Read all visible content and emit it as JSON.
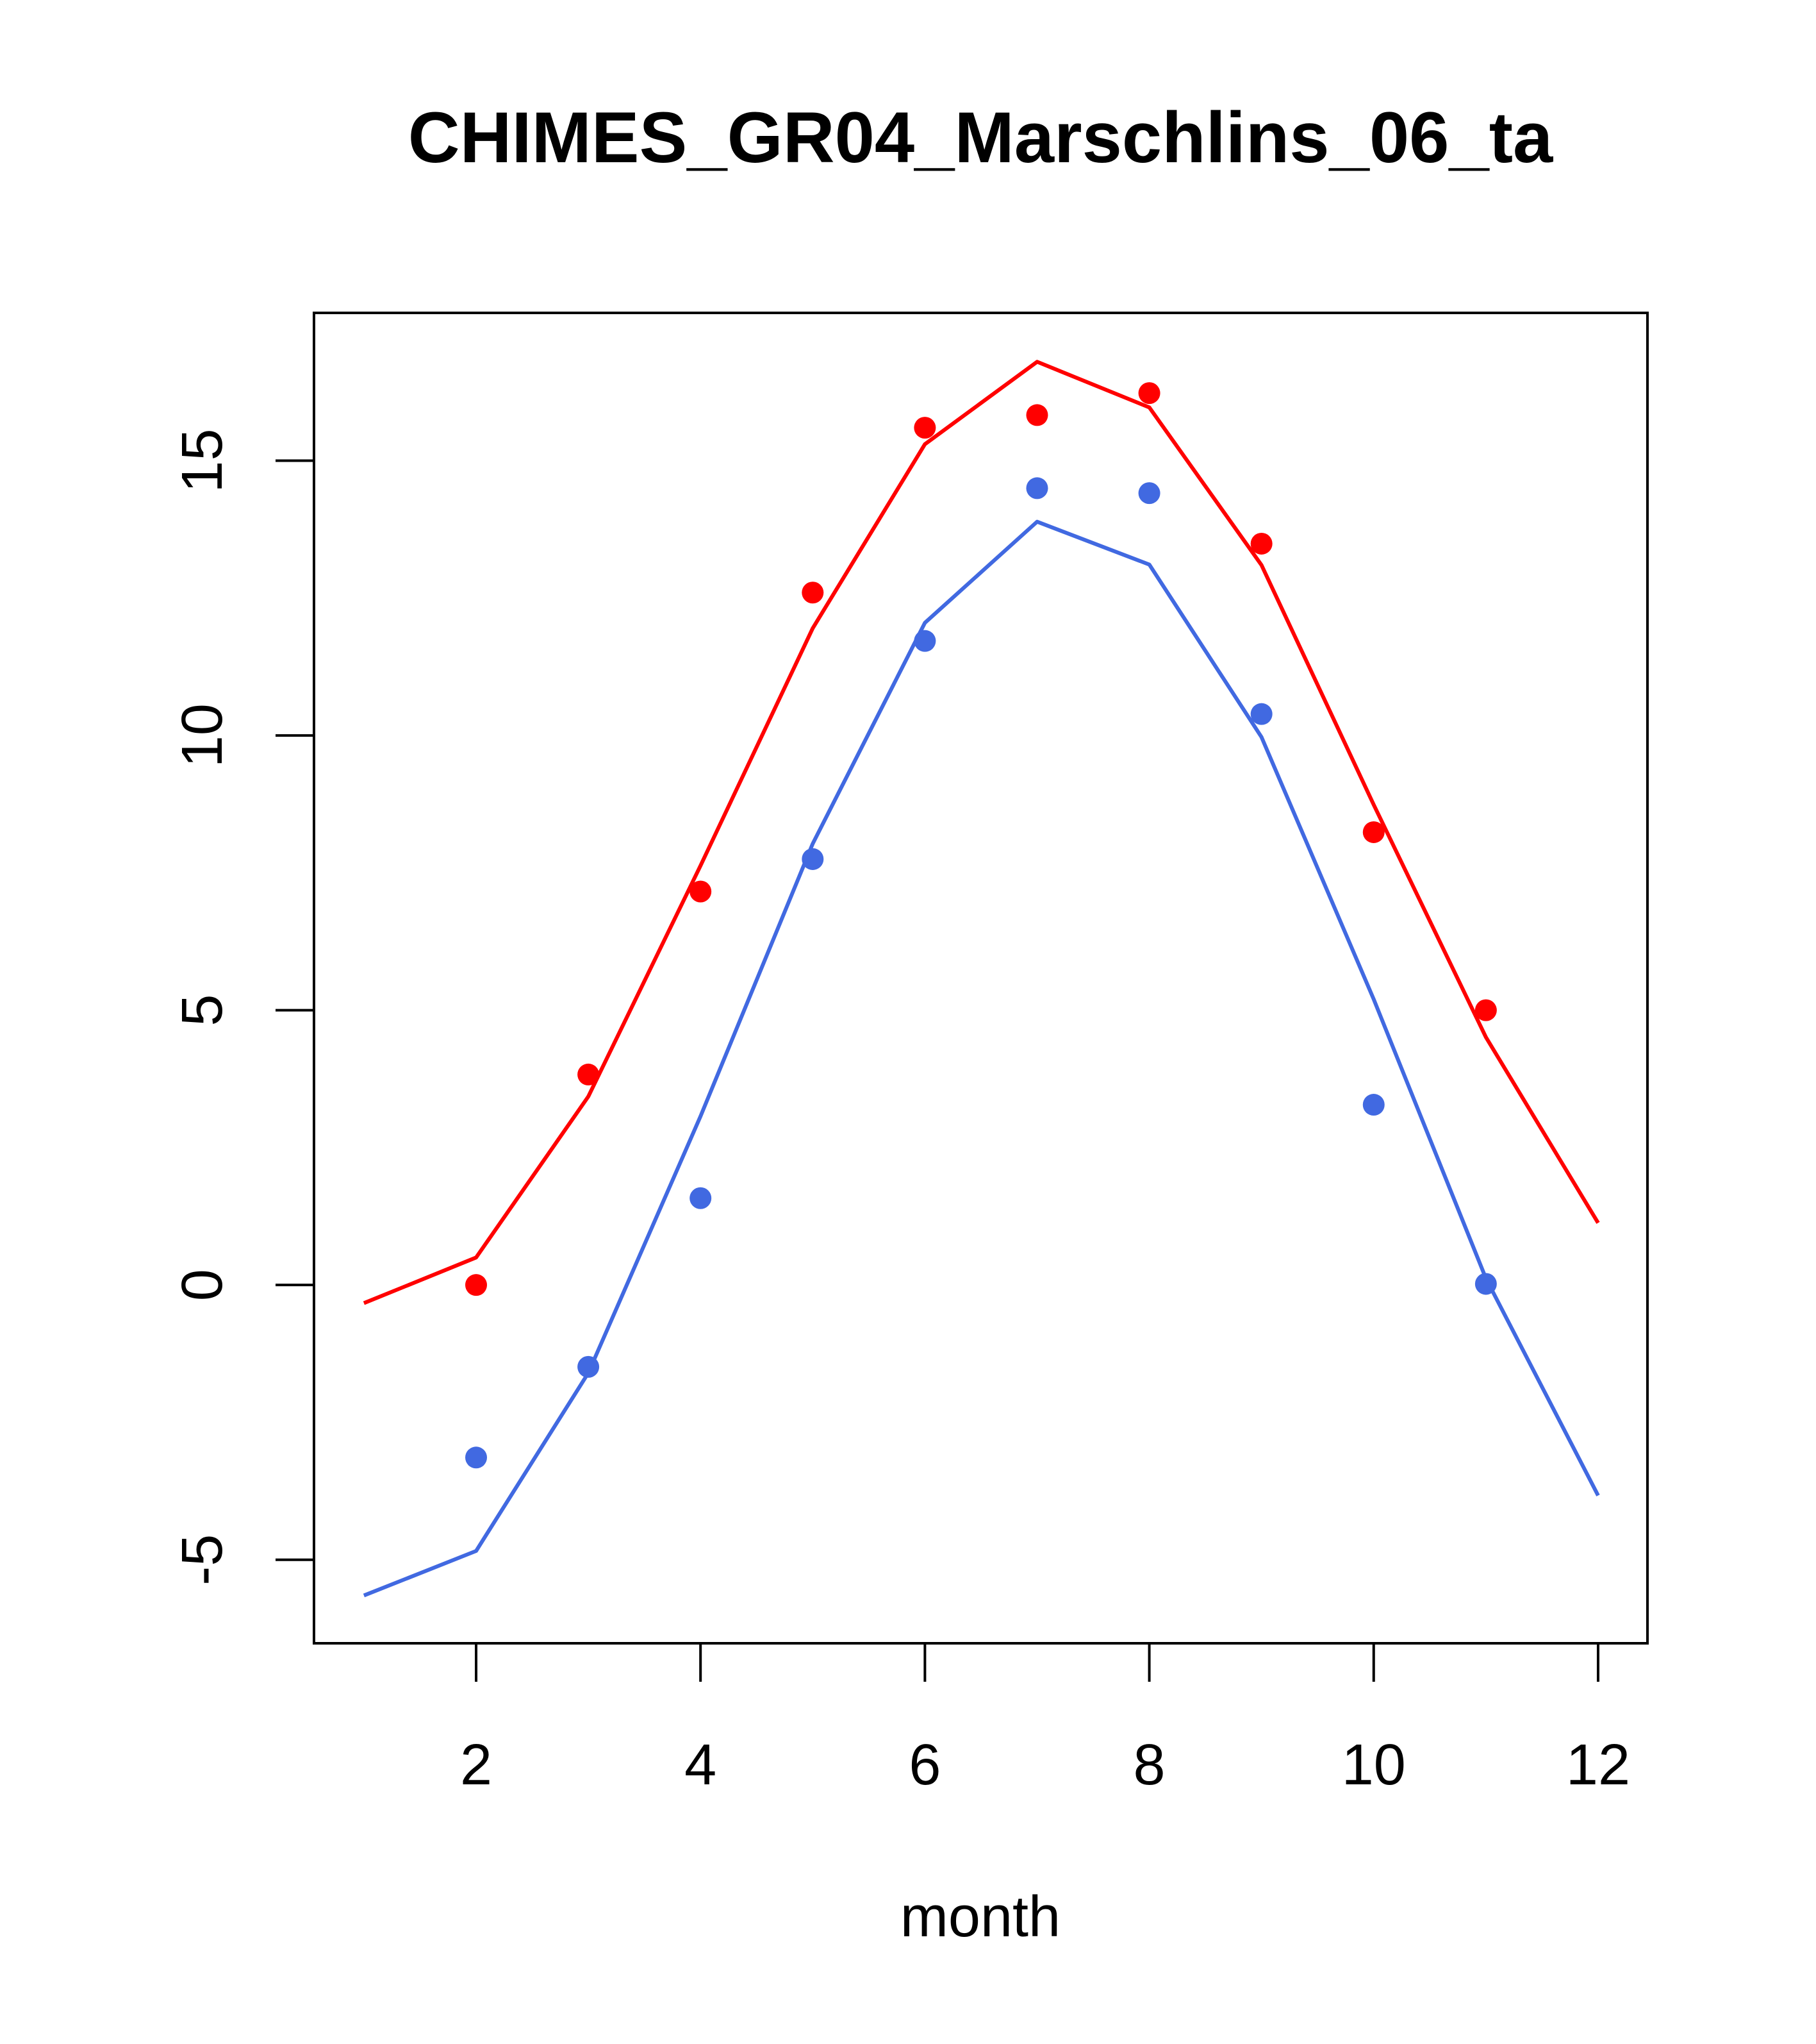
{
  "chart_data": {
    "type": "line",
    "title": "CHIMES_GR04_Marschlins_06_ta",
    "xlabel": "month",
    "ylabel": "",
    "xlim": [
      0.555,
      12.44
    ],
    "ylim": [
      -6.52,
      17.69
    ],
    "xticks": [
      2,
      4,
      6,
      8,
      10,
      12
    ],
    "xtick_labels": [
      "2",
      "4",
      "6",
      "8",
      "10",
      "12"
    ],
    "yticks": [
      -5,
      0,
      5,
      10,
      15
    ],
    "ytick_labels": [
      "-5",
      "0",
      "5",
      "10",
      "15"
    ],
    "grid": false,
    "series": [
      {
        "name": "red-line",
        "kind": "line",
        "color": "#ff0000",
        "x": [
          1,
          2,
          3,
          4,
          5,
          6,
          7,
          8,
          9,
          10,
          11,
          12
        ],
        "y": [
          -0.33,
          0.5,
          3.43,
          7.63,
          11.95,
          15.3,
          16.8,
          15.97,
          13.1,
          8.74,
          4.51,
          1.13
        ]
      },
      {
        "name": "red-points",
        "kind": "points",
        "color": "#ff0000",
        "x": [
          2,
          3,
          4,
          5,
          6,
          7,
          8,
          9,
          10,
          11
        ],
        "y": [
          0.0,
          3.83,
          7.16,
          12.6,
          15.6,
          15.83,
          16.23,
          13.49,
          8.24,
          5.0
        ]
      },
      {
        "name": "blue-line",
        "kind": "line",
        "color": "#4169e1",
        "x": [
          1,
          2,
          3,
          4,
          5,
          6,
          7,
          8,
          9,
          10,
          11,
          12
        ],
        "y": [
          -5.65,
          -4.84,
          -1.6,
          3.07,
          8.03,
          12.05,
          13.89,
          13.11,
          9.97,
          5.2,
          0.12,
          -3.83
        ]
      },
      {
        "name": "blue-points",
        "kind": "points",
        "color": "#4169e1",
        "x": [
          2,
          3,
          4,
          5,
          6,
          7,
          8,
          9,
          10,
          11
        ],
        "y": [
          -3.14,
          -1.49,
          1.58,
          7.75,
          11.72,
          14.5,
          14.41,
          10.39,
          3.28,
          0.02
        ]
      }
    ]
  }
}
